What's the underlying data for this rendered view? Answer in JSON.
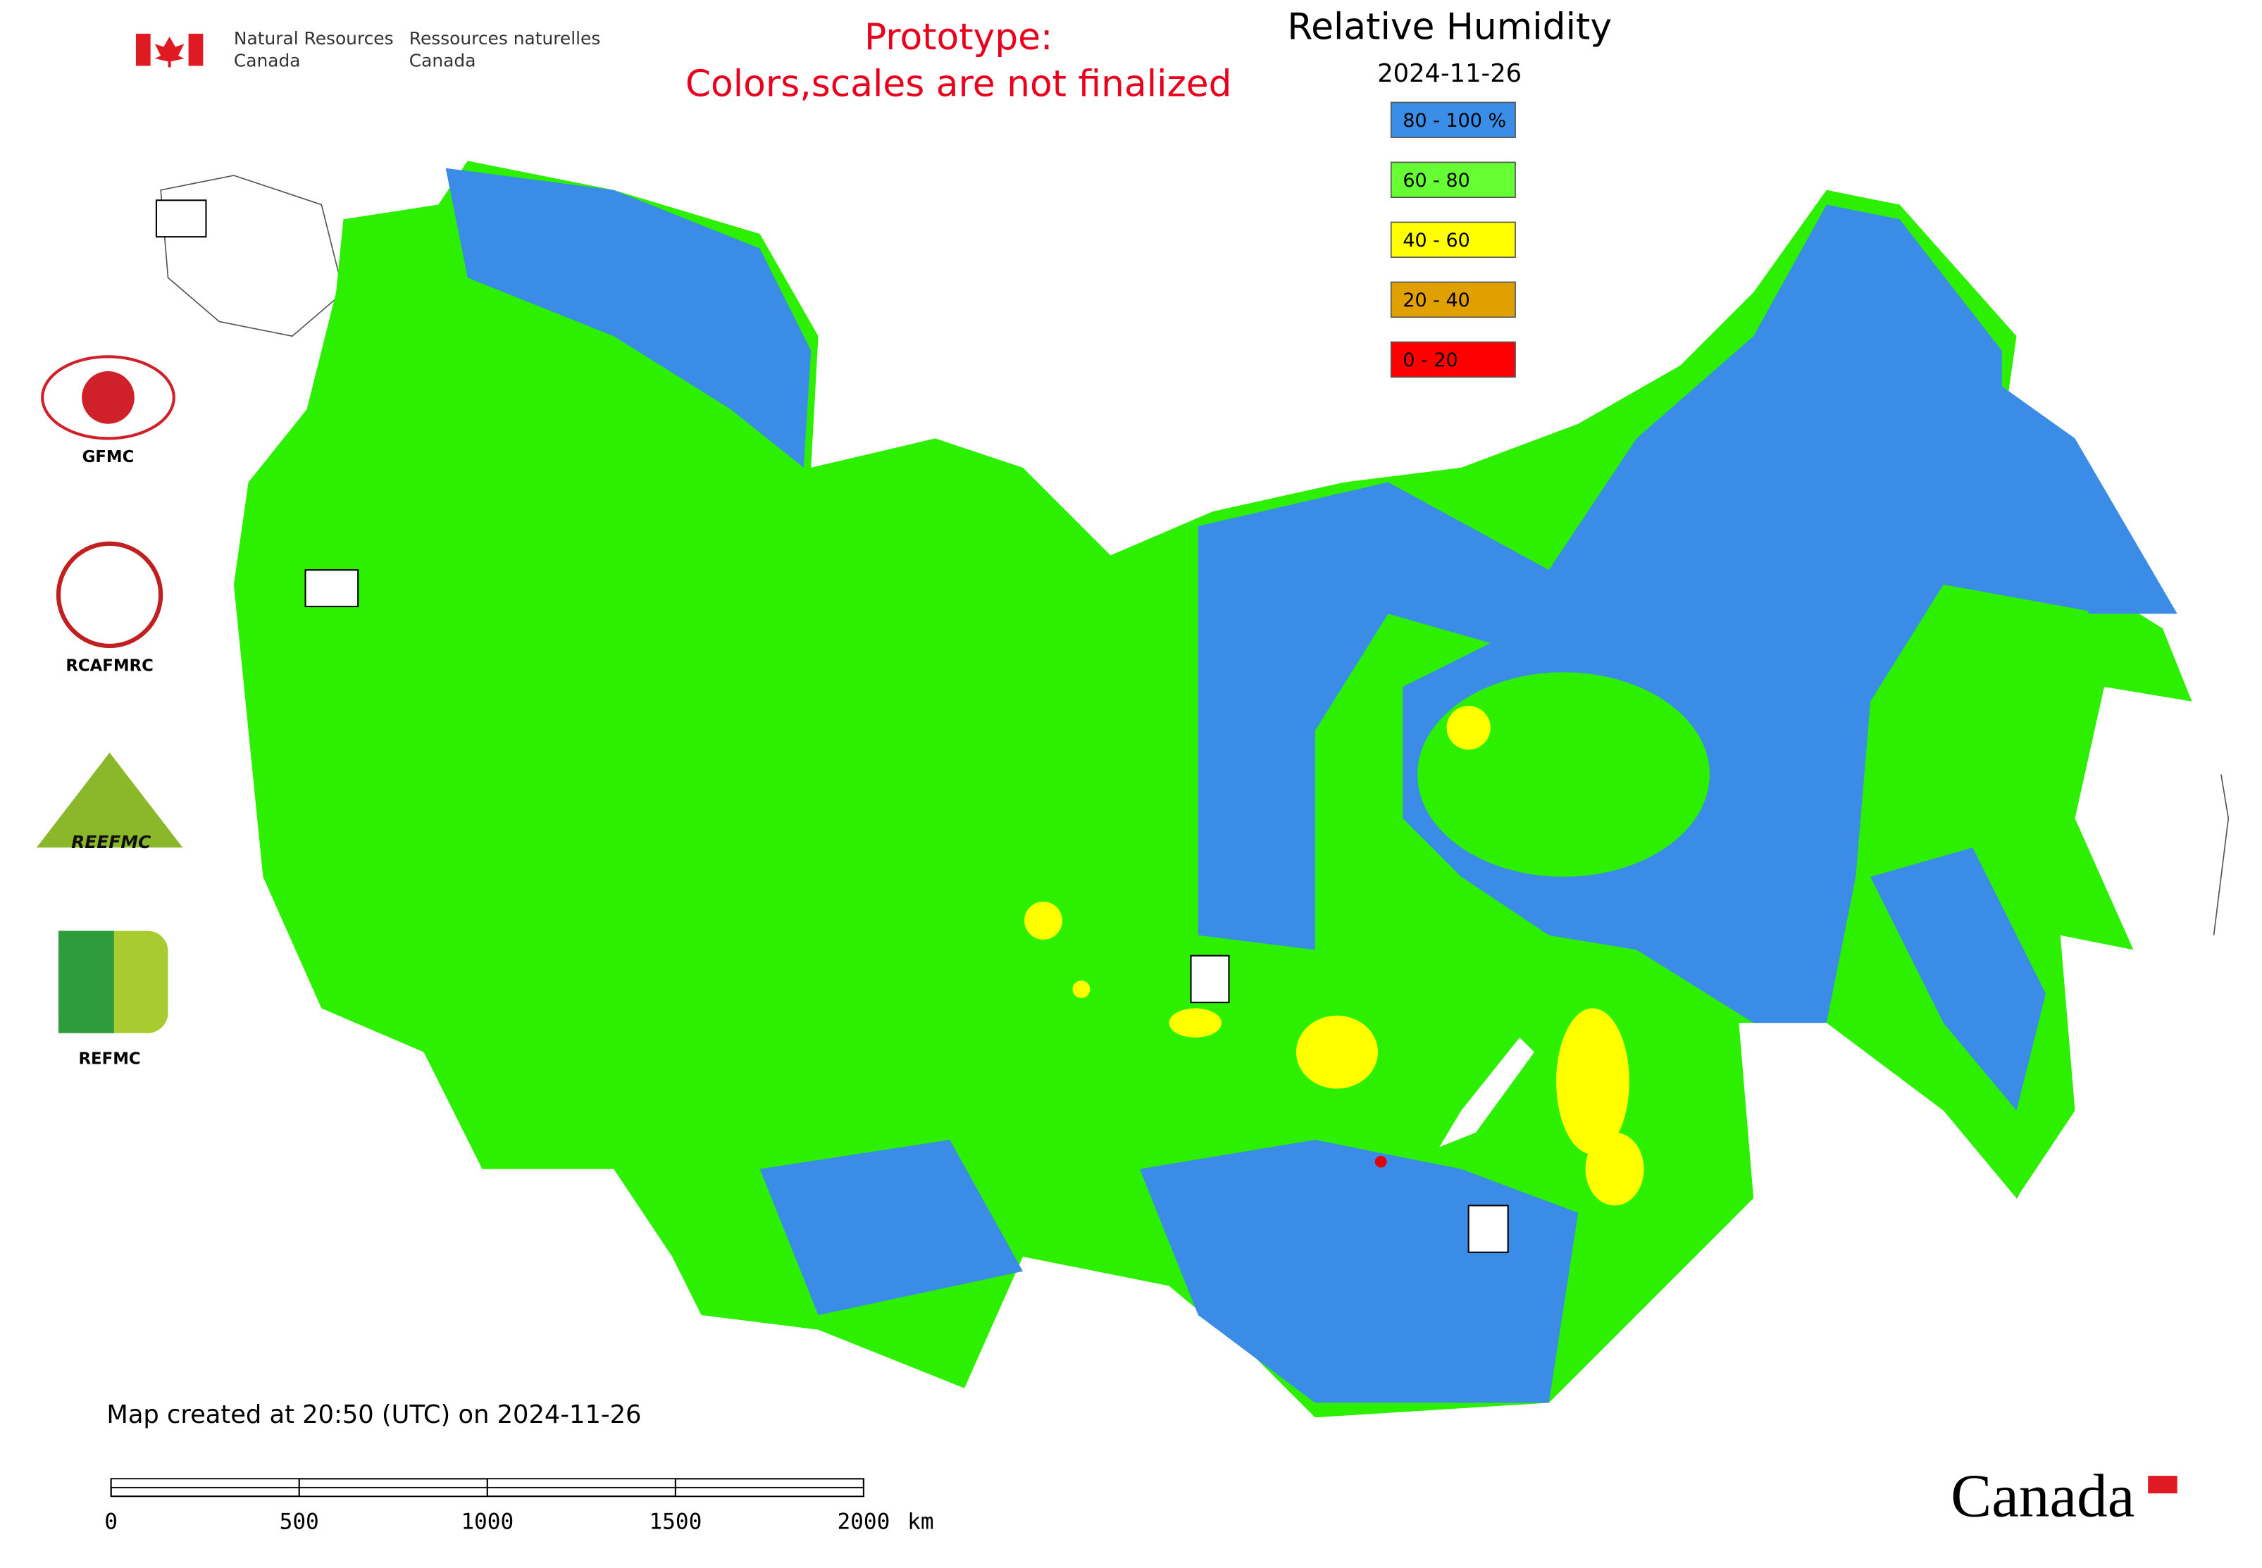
{
  "header": {
    "agency_en": [
      "Natural Resources",
      "Canada"
    ],
    "agency_fr": [
      "Ressources naturelles",
      "Canada"
    ]
  },
  "notice": [
    "Prototype:",
    "Colors,scales are not finalized"
  ],
  "title": "Relative Humidity",
  "date": "2024-11-26",
  "legend": [
    {
      "label": "80 - 100 %",
      "color": "#3b8ee8"
    },
    {
      "label": "60 - 80",
      "color": "#66ff33"
    },
    {
      "label": "40 - 60",
      "color": "#ffff00"
    },
    {
      "label": "20 - 40",
      "color": "#e0a000"
    },
    {
      "label": "0 - 20",
      "color": "#ff0000"
    }
  ],
  "logos": [
    "GFMC",
    "RCAFMRC",
    "REEFMC",
    "REFMC"
  ],
  "footer_note": "Map created at 20:50 (UTC) on 2024-11-26",
  "scale_bar": {
    "ticks": [
      0,
      500,
      1000,
      1500,
      2000
    ],
    "unit": "km"
  },
  "wordmark": "Canada"
}
